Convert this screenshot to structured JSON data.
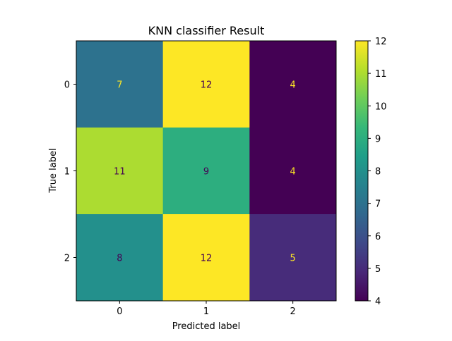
{
  "chart_data": {
    "type": "heatmap",
    "title": "KNN classifier Result",
    "xlabel": "Predicted label",
    "ylabel": "True label",
    "x_categories": [
      "0",
      "1",
      "2"
    ],
    "y_categories": [
      "0",
      "1",
      "2"
    ],
    "values": [
      [
        7,
        12,
        4
      ],
      [
        11,
        9,
        4
      ],
      [
        8,
        12,
        5
      ]
    ],
    "colormap": "viridis",
    "colorbar": {
      "range": [
        4,
        12
      ],
      "ticks": [
        "4",
        "5",
        "6",
        "7",
        "8",
        "9",
        "10",
        "11",
        "12"
      ]
    },
    "label_colors": {
      "dark_cell": "#fde725",
      "light_cell": "#440154"
    }
  }
}
